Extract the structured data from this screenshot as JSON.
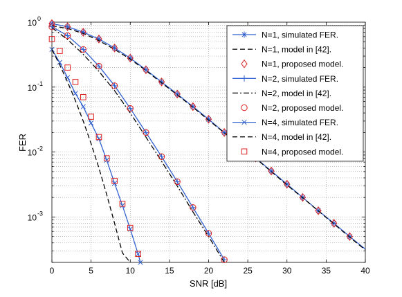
{
  "chart_data": {
    "type": "line",
    "xlabel": "SNR [dB]",
    "ylabel": "FER",
    "xlim": [
      0,
      40
    ],
    "ylim": [
      0.0002,
      1
    ],
    "yscale": "log",
    "grid": true,
    "legend_position": "top-right",
    "x_ticks": [
      0,
      5,
      10,
      15,
      20,
      25,
      30,
      35,
      40
    ],
    "x_tick_labels": [
      "0",
      "5",
      "10",
      "15",
      "20",
      "25",
      "30",
      "35",
      "40"
    ],
    "y_ticks": [
      0.001,
      0.01,
      0.1,
      1
    ],
    "y_tick_labels": [
      {
        "base": "10",
        "exp": "-3"
      },
      {
        "base": "10",
        "exp": "-2"
      },
      {
        "base": "10",
        "exp": "-1"
      },
      {
        "base": "10",
        "exp": "0"
      }
    ],
    "series": [
      {
        "name": "N=1, simulated FER.",
        "color": "#3060d0",
        "style": "solid",
        "marker": "asterisk",
        "x": [
          0,
          2,
          4,
          6,
          8,
          10,
          12,
          14,
          16,
          18,
          20,
          22,
          24,
          26,
          28,
          30,
          32,
          34,
          36,
          38,
          40
        ],
        "y": [
          0.95,
          0.85,
          0.7,
          0.55,
          0.4,
          0.28,
          0.185,
          0.12,
          0.078,
          0.05,
          0.032,
          0.02,
          0.0128,
          0.0081,
          0.0051,
          0.0032,
          0.002,
          0.00125,
          0.0008,
          0.0005,
          0.00032
        ]
      },
      {
        "name": "N=1, model in [42].",
        "color": "#000000",
        "style": "dashed",
        "marker": "none",
        "x": [
          0,
          2,
          4,
          6,
          8,
          10,
          12,
          14,
          16,
          18,
          20,
          22,
          24,
          26,
          28,
          30,
          32,
          34,
          36,
          38,
          40
        ],
        "y": [
          0.88,
          0.8,
          0.67,
          0.52,
          0.38,
          0.27,
          0.18,
          0.116,
          0.076,
          0.049,
          0.031,
          0.0198,
          0.0126,
          0.008,
          0.005,
          0.0031,
          0.00198,
          0.00124,
          0.00078,
          0.00049,
          0.00031
        ]
      },
      {
        "name": "N=1, proposed model.",
        "color": "#e02020",
        "style": "none",
        "marker": "diamond",
        "x": [
          0,
          2,
          4,
          6,
          8,
          10,
          12,
          14,
          16,
          18,
          20,
          22,
          24,
          26,
          28,
          30,
          32,
          34,
          36,
          38,
          40
        ],
        "y": [
          0.95,
          0.85,
          0.7,
          0.55,
          0.4,
          0.28,
          0.185,
          0.12,
          0.078,
          0.05,
          0.032,
          0.02,
          0.0128,
          0.0081,
          0.0051,
          0.0032,
          0.002,
          0.00125,
          0.0008,
          0.0005,
          0.00032
        ]
      },
      {
        "name": "N=2, simulated FER.",
        "color": "#3060d0",
        "style": "solid",
        "marker": "plus",
        "x": [
          0,
          2,
          4,
          6,
          8,
          10,
          12,
          14,
          16,
          18,
          20,
          22
        ],
        "y": [
          0.85,
          0.62,
          0.38,
          0.21,
          0.105,
          0.047,
          0.02,
          0.0085,
          0.0035,
          0.0014,
          0.00056,
          0.00022
        ]
      },
      {
        "name": "N=2, model in [42].",
        "color": "#000000",
        "style": "dashdot",
        "marker": "none",
        "x": [
          0,
          2,
          4,
          6,
          8,
          10,
          12,
          14,
          16,
          18,
          20,
          22
        ],
        "y": [
          0.82,
          0.54,
          0.32,
          0.175,
          0.088,
          0.04,
          0.017,
          0.0072,
          0.003,
          0.0012,
          0.0005,
          0.0002
        ]
      },
      {
        "name": "N=2, proposed model.",
        "color": "#e02020",
        "style": "none",
        "marker": "circle",
        "x": [
          0,
          2,
          4,
          6,
          8,
          10,
          12,
          14,
          16,
          18,
          20,
          22
        ],
        "y": [
          0.85,
          0.62,
          0.38,
          0.21,
          0.105,
          0.047,
          0.02,
          0.0085,
          0.0035,
          0.0014,
          0.00056,
          0.00022
        ]
      },
      {
        "name": "N=4, simulated FER.",
        "color": "#3060d0",
        "style": "solid",
        "marker": "cross",
        "x": [
          0,
          1,
          2,
          3,
          4,
          5,
          6,
          7,
          8,
          9,
          10,
          11,
          11.3
        ],
        "y": [
          0.38,
          0.24,
          0.14,
          0.08,
          0.05,
          0.028,
          0.016,
          0.0075,
          0.0033,
          0.0015,
          0.00065,
          0.00027,
          0.0002
        ]
      },
      {
        "name": "N=4, model in [42].",
        "color": "#000000",
        "style": "dashed",
        "marker": "none",
        "x": [
          0,
          1,
          2,
          3,
          4,
          5,
          6,
          7,
          8,
          9,
          10
        ],
        "y": [
          0.38,
          0.22,
          0.12,
          0.062,
          0.03,
          0.0135,
          0.0057,
          0.0022,
          0.0008,
          0.00028,
          0.0002
        ]
      },
      {
        "name": "N=4, proposed model.",
        "color": "#e02020",
        "style": "none",
        "marker": "square",
        "x": [
          0,
          1,
          2,
          3,
          4,
          5,
          6,
          7,
          8,
          9,
          10,
          11
        ],
        "y": [
          0.55,
          0.36,
          0.2,
          0.12,
          0.07,
          0.035,
          0.017,
          0.008,
          0.0036,
          0.0016,
          0.00068,
          0.00027
        ]
      }
    ]
  }
}
